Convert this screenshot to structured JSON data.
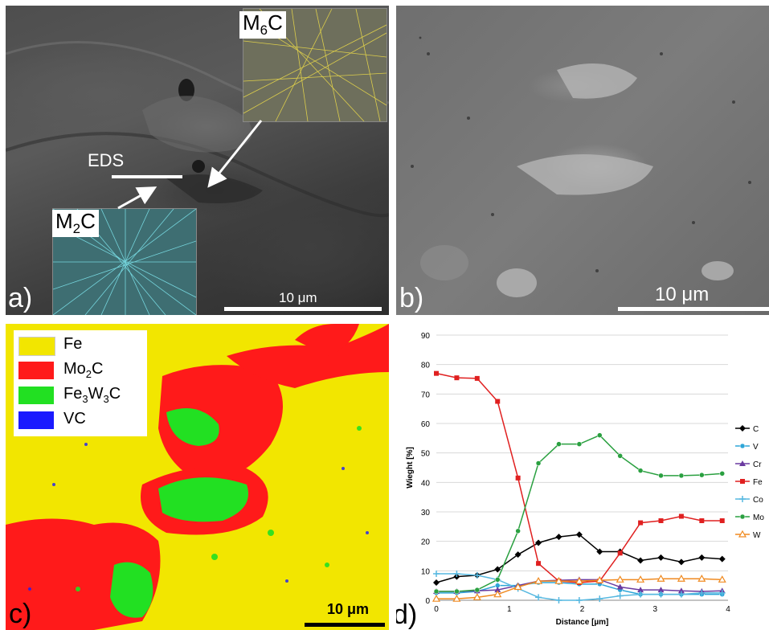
{
  "panels": {
    "a": {
      "letter": "a)",
      "scale_label": "10 μm",
      "eds_label": "EDS",
      "m6c_label_main": "M",
      "m6c_label_sub": "6",
      "m6c_label_end": "C",
      "m2c_label_main": "M",
      "m2c_label_sub": "2",
      "m2c_label_end": "C"
    },
    "b": {
      "letter": "b)",
      "scale_label": "10 μm"
    },
    "c": {
      "letter": "c)",
      "scale_label": "10 μm",
      "legend": [
        {
          "main": "Fe",
          "sub": "",
          "end": "",
          "sub2": "",
          "end2": "",
          "color": "#f2e600"
        },
        {
          "main": "Mo",
          "sub": "2",
          "end": "C",
          "sub2": "",
          "end2": "",
          "color": "#ff1a1a"
        },
        {
          "main": "Fe",
          "sub": "3",
          "end": "W",
          "sub2": "3",
          "end2": "C",
          "color": "#22e022"
        },
        {
          "main": "VC",
          "sub": "",
          "end": "",
          "sub2": "",
          "end2": "",
          "color": "#1a1aff"
        }
      ]
    },
    "d": {
      "letter": "d)"
    }
  },
  "chart_data": {
    "type": "line",
    "title": "",
    "xlabel": "Distance [µm]",
    "ylabel": "Wieght [%]",
    "xlim": [
      0,
      4
    ],
    "ylim": [
      0,
      90
    ],
    "xticks": [
      0,
      1,
      2,
      3,
      4
    ],
    "yticks": [
      0,
      10,
      20,
      30,
      40,
      50,
      60,
      70,
      80,
      90
    ],
    "grid": true,
    "legend_position": "right",
    "x": [
      0,
      0.28,
      0.56,
      0.84,
      1.12,
      1.4,
      1.68,
      1.96,
      2.24,
      2.52,
      2.8,
      3.08,
      3.36,
      3.64,
      3.92
    ],
    "series": [
      {
        "name": "C",
        "color": "#000000",
        "marker": "diamond",
        "values": [
          6,
          8,
          8.5,
          10.5,
          15.5,
          19.5,
          21.5,
          22.3,
          16.5,
          16.5,
          13.5,
          14.5,
          13,
          14.5,
          14
        ]
      },
      {
        "name": "V",
        "color": "#2ea6d8",
        "marker": "circle",
        "values": [
          2.5,
          2.5,
          3,
          5,
          5,
          6,
          6,
          5.5,
          5.5,
          3.5,
          2,
          2,
          2,
          2,
          2
        ]
      },
      {
        "name": "Cr",
        "color": "#6a3aa0",
        "marker": "triangle",
        "values": [
          3,
          3,
          3.2,
          3.5,
          5,
          6.5,
          6.8,
          7,
          7,
          4.5,
          3.5,
          3.5,
          3.2,
          3,
          3.2
        ]
      },
      {
        "name": "Fe",
        "color": "#e02020",
        "marker": "square",
        "values": [
          77,
          75.5,
          75.3,
          67.5,
          41.5,
          12.5,
          6.5,
          6,
          6.5,
          16,
          26.3,
          27,
          28.5,
          27,
          27
        ]
      },
      {
        "name": "Co",
        "color": "#56b8e0",
        "marker": "cross",
        "values": [
          9,
          9,
          8.5,
          7,
          4,
          1,
          0,
          0,
          0.5,
          1.5,
          2,
          2,
          2,
          2.5,
          2.5
        ]
      },
      {
        "name": "Mo",
        "color": "#2aa040",
        "marker": "circle",
        "values": [
          3,
          3,
          3.5,
          7,
          23.5,
          46.5,
          53,
          53,
          56,
          49,
          44,
          42.3,
          42.3,
          42.5,
          43
        ]
      },
      {
        "name": "W",
        "color": "#f08a20",
        "marker": "triangle-open",
        "values": [
          0.5,
          0.5,
          1,
          2,
          4.5,
          6.5,
          6.5,
          6.5,
          6.8,
          7,
          7,
          7.3,
          7.3,
          7.3,
          7
        ]
      }
    ]
  }
}
